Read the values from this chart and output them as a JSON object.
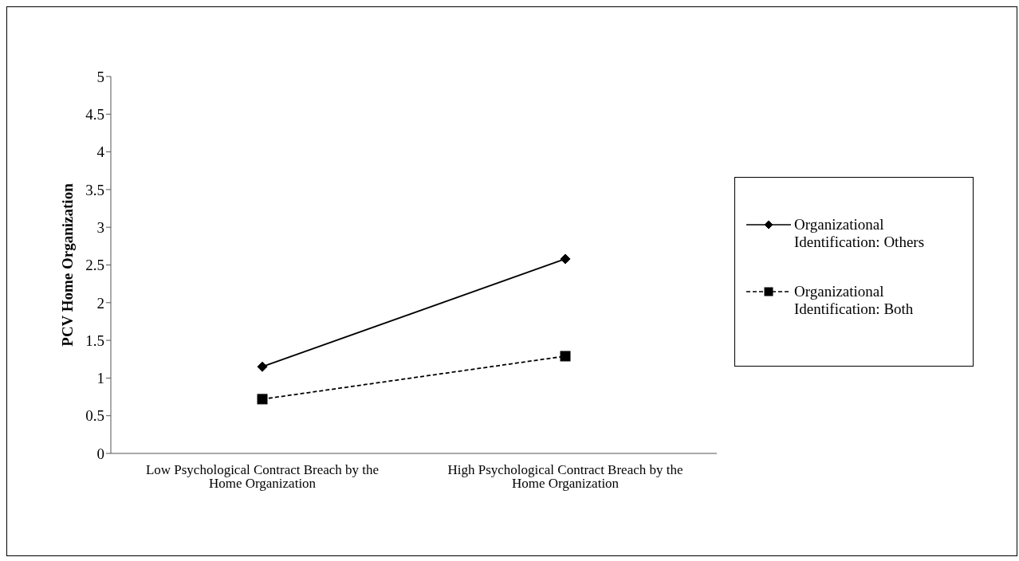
{
  "chart_data": {
    "type": "line",
    "ylabel": "PCV Home Organization",
    "categories": [
      "Low Psychological Contract Breach by the Home Organization",
      "High Psychological Contract Breach by the Home Organization"
    ],
    "series": [
      {
        "name": "Organizational Identification: Others",
        "color": "#000000",
        "values": [
          1.15,
          2.58
        ],
        "marker": "diamond",
        "line_style": "solid"
      },
      {
        "name": "Organizational Identification: Both",
        "color": "#000000",
        "values": [
          0.72,
          1.29
        ],
        "marker": "square",
        "line_style": "dashed"
      }
    ],
    "ylim": [
      0,
      5
    ],
    "yticks": [
      0,
      0.5,
      1,
      1.5,
      2,
      2.5,
      3,
      3.5,
      4,
      4.5,
      5
    ],
    "legend": "right"
  }
}
